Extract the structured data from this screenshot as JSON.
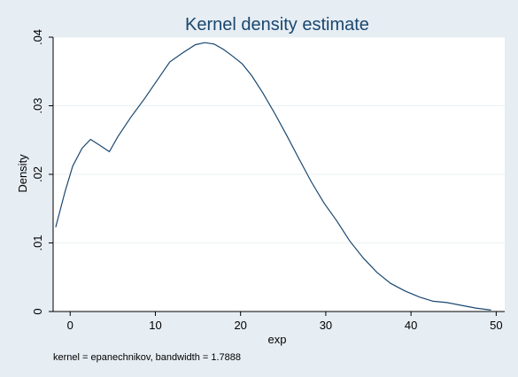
{
  "chart_data": {
    "type": "line",
    "title": "Kernel density estimate",
    "xlabel": "exp",
    "ylabel": "Density",
    "note": "kernel = epanechnikov, bandwidth = 1.7888",
    "xlim": [
      -2,
      51
    ],
    "ylim": [
      0,
      0.04
    ],
    "x_ticks": [
      0,
      10,
      20,
      30,
      40,
      50
    ],
    "x_tick_labels": [
      "0",
      "10",
      "20",
      "30",
      "40",
      "50"
    ],
    "y_ticks": [
      0,
      0.01,
      0.02,
      0.03,
      0.04
    ],
    "y_tick_labels": [
      "0",
      ".01",
      ".02",
      ".03",
      ".04"
    ],
    "grid": true,
    "colors": {
      "line": "#1a476f",
      "plot_bg": "#ffffff",
      "outer_bg": "#e6edf3",
      "grid": "#eaf2f3"
    },
    "series": [
      {
        "x": [
          -1.7,
          -0.6,
          0.3,
          1.4,
          2.4,
          3.4,
          4.6,
          5.6,
          7.1,
          8.7,
          10.2,
          11.7,
          13.2,
          14.7,
          15.8,
          16.9,
          18.0,
          19.1,
          20.2,
          21.3,
          22.6,
          24.0,
          25.4,
          26.8,
          28.3,
          29.8,
          31.3,
          32.8,
          34.4,
          36.0,
          37.6,
          39.3,
          41.0,
          42.6,
          44.2,
          45.9,
          47.6,
          49.4
        ],
        "y": [
          0.0123,
          0.0175,
          0.0212,
          0.0238,
          0.0251,
          0.0243,
          0.0233,
          0.0255,
          0.0283,
          0.031,
          0.0337,
          0.0364,
          0.0377,
          0.0389,
          0.0392,
          0.039,
          0.0382,
          0.0372,
          0.0361,
          0.0344,
          0.0319,
          0.0289,
          0.0257,
          0.0224,
          0.0189,
          0.0158,
          0.0132,
          0.0103,
          0.0078,
          0.0057,
          0.0041,
          0.003,
          0.0021,
          0.0015,
          0.0013,
          0.0009,
          0.0005,
          0.0002
        ]
      }
    ]
  }
}
